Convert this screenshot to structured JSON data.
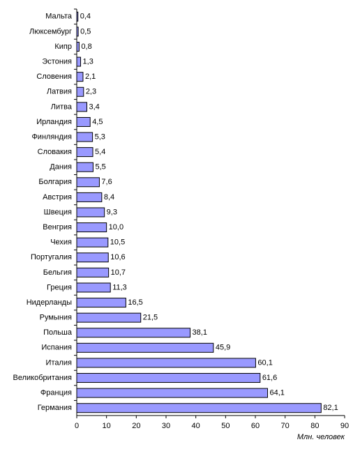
{
  "chart_data": {
    "type": "bar",
    "categories": [
      "Мальта",
      "Люксембург",
      "Кипр",
      "Эстония",
      "Словения",
      "Латвия",
      "Литва",
      "Ирландия",
      "Финляндия",
      "Словакия",
      "Дания",
      "Болгария",
      "Австрия",
      "Швеция",
      "Венгрия",
      "Чехия",
      "Португалия",
      "Бельгия",
      "Греция",
      "Нидерланды",
      "Румыния",
      "Польша",
      "Испания",
      "Италия",
      "Великобритания",
      "Франция",
      "Германия"
    ],
    "values": [
      0.4,
      0.5,
      0.8,
      1.3,
      2.1,
      2.3,
      3.4,
      4.5,
      5.3,
      5.4,
      5.5,
      7.6,
      8.4,
      9.3,
      10.0,
      10.5,
      10.6,
      10.7,
      11.3,
      16.5,
      21.5,
      38.1,
      45.9,
      60.1,
      61.6,
      64.1,
      82.1
    ],
    "value_labels": [
      "0,4",
      "0,5",
      "0,8",
      "1,3",
      "2,1",
      "2,3",
      "3,4",
      "4,5",
      "5,3",
      "5,4",
      "5,5",
      "7,6",
      "8,4",
      "9,3",
      "10,0",
      "10,5",
      "10,6",
      "10,7",
      "11,3",
      "16,5",
      "21,5",
      "38,1",
      "45,9",
      "60,1",
      "61,6",
      "64,1",
      "82,1"
    ],
    "color": "#9999ff",
    "xlabel": "Млн. человек",
    "xlim": [
      0,
      90
    ],
    "xticks": [
      0,
      10,
      20,
      30,
      40,
      50,
      60,
      70,
      80,
      90
    ]
  }
}
